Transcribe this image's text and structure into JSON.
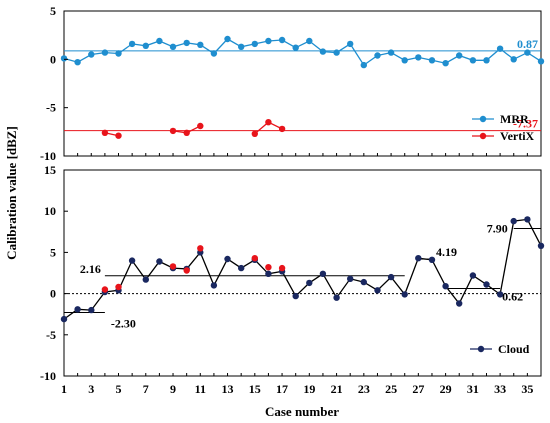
{
  "chart_data": {
    "type": "line",
    "ylabel": "Calibration value [dBZ]",
    "xlabel": "Case number",
    "x_ticks": [
      "1",
      "3",
      "5",
      "7",
      "9",
      "11",
      "13",
      "15",
      "17",
      "19",
      "21",
      "23",
      "25",
      "27",
      "29",
      "31",
      "33",
      "35"
    ],
    "xlim": [
      1,
      36
    ],
    "panels": [
      {
        "name": "top",
        "ylim": [
          -10,
          5
        ],
        "y_ticks": [
          "5",
          "0",
          "-5",
          "-10"
        ],
        "grid": false,
        "legend_position": "bottom-right",
        "series": [
          {
            "name": "MRR",
            "color": "#1f8ecf",
            "x": [
              1,
              2,
              3,
              4,
              5,
              6,
              7,
              8,
              9,
              10,
              11,
              12,
              13,
              14,
              15,
              16,
              17,
              18,
              19,
              20,
              21,
              22,
              23,
              24,
              25,
              26,
              27,
              28,
              29,
              30,
              31,
              32,
              33,
              34,
              35,
              36
            ],
            "y": [
              0.1,
              -0.3,
              0.5,
              0.7,
              0.6,
              1.6,
              1.4,
              1.9,
              1.3,
              1.7,
              1.5,
              0.6,
              2.1,
              1.3,
              1.6,
              1.9,
              2.0,
              1.2,
              1.9,
              0.8,
              0.7,
              1.6,
              -0.6,
              0.4,
              0.7,
              -0.1,
              0.2,
              -0.1,
              -0.4,
              0.4,
              -0.1,
              -0.1,
              1.1,
              0.0,
              0.7,
              -0.2
            ]
          },
          {
            "name": "VertiX",
            "color": "#e8141b",
            "segments": [
              {
                "x": [
                  4,
                  5
                ],
                "y": [
                  -7.6,
                  -7.9
                ]
              },
              {
                "x": [
                  9,
                  10,
                  11
                ],
                "y": [
                  -7.4,
                  -7.6,
                  -6.9
                ]
              },
              {
                "x": [
                  15,
                  16,
                  17
                ],
                "y": [
                  -7.7,
                  -6.5,
                  -7.2
                ]
              }
            ]
          }
        ],
        "reference_lines": [
          {
            "name": "MRR mean",
            "value": 0.87,
            "label": "0.87",
            "color": "#1f8ecf"
          },
          {
            "name": "VertiX mean",
            "value": -7.37,
            "label": "-7.37",
            "color": "#e8141b"
          }
        ]
      },
      {
        "name": "bottom",
        "ylim": [
          -10,
          15
        ],
        "y_ticks": [
          "15",
          "10",
          "5",
          "0",
          "-5",
          "-10"
        ],
        "grid": false,
        "legend_position": "bottom-right",
        "series": [
          {
            "name": "Cloud",
            "color": "#1a2860",
            "x": [
              1,
              2,
              3,
              4,
              5,
              6,
              7,
              8,
              9,
              10,
              11,
              12,
              13,
              14,
              15,
              16,
              17,
              18,
              19,
              20,
              21,
              22,
              23,
              24,
              25,
              26,
              27,
              28,
              29,
              30,
              31,
              32,
              33,
              34,
              35,
              36
            ],
            "y": [
              -3.1,
              -1.9,
              -2.0,
              0.2,
              0.4,
              4.0,
              1.7,
              3.9,
              3.1,
              3.0,
              5.0,
              1.0,
              4.2,
              3.1,
              4.1,
              2.4,
              2.7,
              -0.3,
              1.3,
              2.4,
              -0.5,
              1.8,
              1.4,
              0.4,
              2.0,
              -0.1,
              4.3,
              4.1,
              0.9,
              -1.2,
              2.2,
              1.1,
              -0.1,
              8.8,
              9.0,
              5.8
            ]
          },
          {
            "name": "VertiX overlay",
            "color": "#e8141b",
            "x": [
              4,
              5,
              9,
              10,
              11,
              15,
              16,
              17
            ],
            "y": [
              0.5,
              0.8,
              3.3,
              2.8,
              5.5,
              4.3,
              3.2,
              3.1
            ]
          }
        ],
        "segment_means": [
          {
            "x_start": 1,
            "x_end": 4,
            "value": -2.3,
            "label": "-2.30"
          },
          {
            "x_start": 4,
            "x_end": 26,
            "value": 2.16,
            "label": "2.16"
          },
          {
            "x_start": 27,
            "x_end": 28,
            "value": 4.19,
            "label": "4.19"
          },
          {
            "x_start": 29,
            "x_end": 33,
            "value": 0.62,
            "label": "0.62"
          },
          {
            "x_start": 34,
            "x_end": 36,
            "value": 7.9,
            "label": "7.90"
          }
        ],
        "zero_line": "dotted"
      }
    ]
  }
}
